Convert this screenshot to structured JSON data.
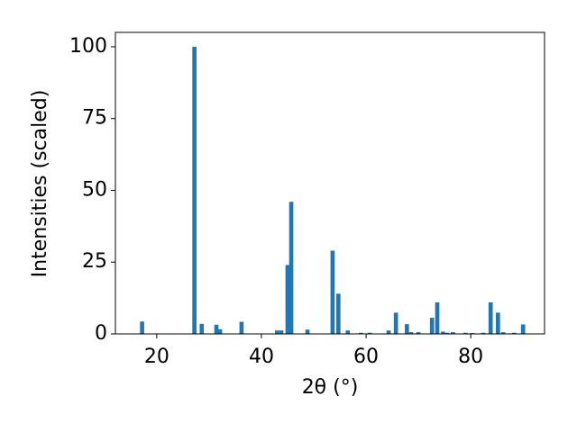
{
  "chart_data": {
    "type": "bar",
    "x_label": "2θ (°)",
    "y_label": "Intensities (scaled)",
    "color": "#1f77b4",
    "x": [
      17.2,
      27.2,
      28.6,
      31.4,
      32.1,
      36.2,
      43.0,
      43.8,
      45.0,
      45.7,
      48.8,
      53.6,
      54.7,
      56.5,
      59.0,
      60.7,
      64.3,
      65.7,
      67.8,
      68.6,
      70.0,
      72.6,
      73.6,
      74.7,
      75.5,
      76.6,
      79.0,
      80.3,
      82.4,
      83.8,
      85.2,
      86.2,
      88.3,
      90.0
    ],
    "values": [
      4.3,
      100,
      3.5,
      3.2,
      1.6,
      4.2,
      1.2,
      1.2,
      24,
      46,
      1.5,
      29,
      14,
      1.2,
      0.4,
      0.4,
      1.2,
      7.4,
      3.4,
      0.6,
      0.6,
      5.6,
      11,
      0.8,
      0.4,
      0.6,
      0.4,
      0.3,
      0.4,
      11,
      7.4,
      0.6,
      0.4,
      3.3
    ],
    "xlim": [
      12.1,
      94.1
    ],
    "xticks": [
      20,
      40,
      60,
      80
    ],
    "ylim": [
      0,
      105
    ],
    "yticks": [
      0,
      25,
      50,
      75,
      100
    ],
    "grid": false
  }
}
